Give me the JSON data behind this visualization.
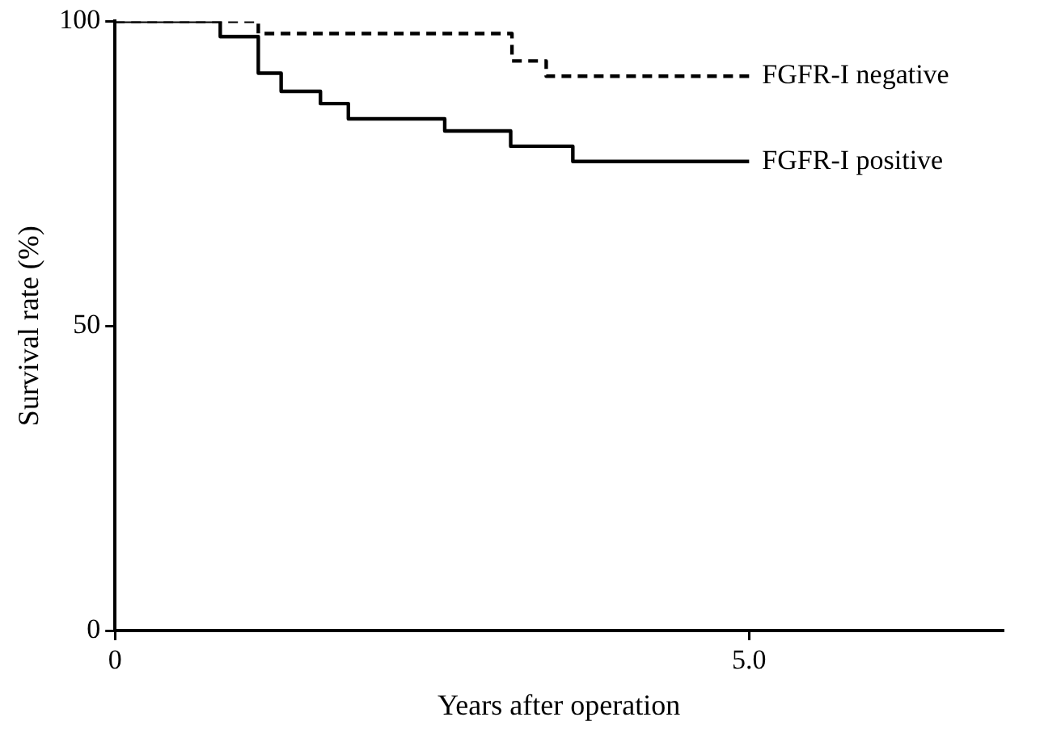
{
  "chart_data": {
    "type": "step",
    "xlabel": "Years after operation",
    "ylabel": "Survival rate (%)",
    "xlim": [
      0,
      7
    ],
    "xticks": [
      0,
      {
        "value": 5,
        "label": "5.0"
      }
    ],
    "ylim": [
      0,
      100
    ],
    "yticks": [
      0,
      50,
      100
    ],
    "grid": false,
    "legend": false,
    "marker": "none",
    "series": [
      {
        "name": "FGFR-I negative",
        "color": "#000000",
        "line_style": "dashed",
        "x": [
          0,
          1.13,
          3.13,
          3.4,
          5.0
        ],
        "values": [
          100,
          98,
          93.5,
          91,
          91
        ]
      },
      {
        "name": "FGFR-I positive",
        "color": "#000000",
        "line_style": "solid",
        "x": [
          0,
          0.83,
          1.13,
          1.31,
          1.62,
          1.84,
          2.6,
          3.12,
          3.61,
          5.0
        ],
        "values": [
          100,
          97.5,
          91.5,
          88.5,
          86.5,
          84,
          82,
          79.5,
          77,
          77
        ]
      }
    ]
  }
}
